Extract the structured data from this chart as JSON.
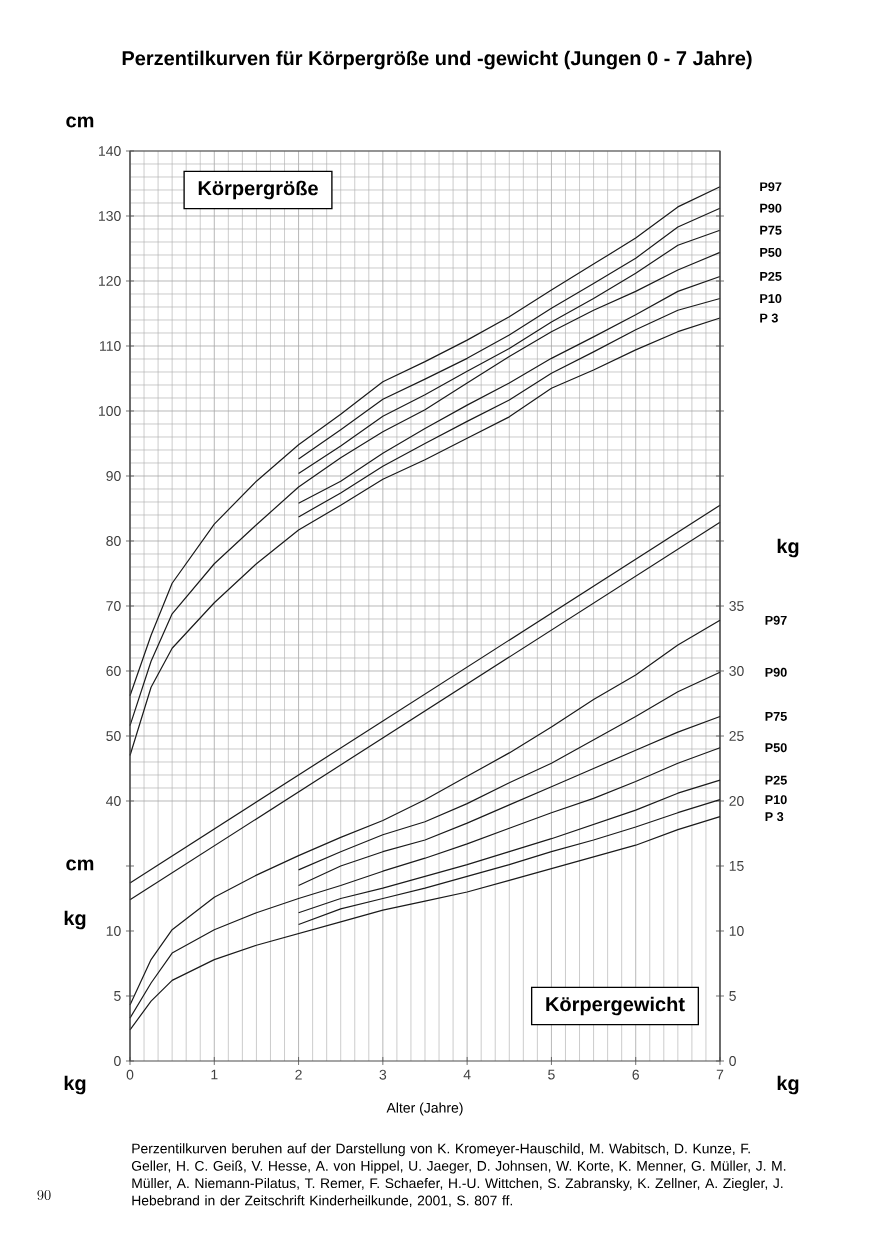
{
  "chart_data": {
    "type": "line",
    "title": "Perzentilkurven für Körpergröße und -gewicht (Jungen 0 - 7 Jahre)",
    "xlabel": "Alter (Jahre)",
    "ylabel": "cm",
    "y2label": "kg",
    "xlim": [
      0,
      7
    ],
    "xticks": [
      0,
      1,
      2,
      3,
      4,
      5,
      6,
      7
    ],
    "ylim": [
      0,
      140
    ],
    "yticks": [
      40,
      50,
      60,
      70,
      80,
      90,
      100,
      110,
      120,
      130,
      140
    ],
    "y3lim": [
      0,
      70
    ],
    "y3ticks": [
      0,
      5,
      10,
      {
        "value": 15,
        "label": null
      }
    ],
    "y2lim": [
      0,
      70
    ],
    "y2ticks": [
      0,
      5,
      10,
      15,
      20,
      25,
      30,
      35,
      {
        "value": 40,
        "label": null
      },
      {
        "value": 45,
        "label": null
      },
      {
        "value": 50,
        "label": null
      },
      {
        "value": 55,
        "label": null
      },
      {
        "value": 60,
        "label": null
      },
      {
        "value": 65,
        "label": null
      }
    ],
    "grid": true,
    "marker": "none",
    "series": [
      {
        "name": "P97",
        "color": "#1a1a1a",
        "x": [
          0,
          0.25,
          0.5,
          1,
          1.5,
          2,
          2.5,
          3,
          3.5,
          4,
          4.5,
          5,
          5.5,
          6,
          6.5,
          7
        ],
        "values": [
          56.2,
          65.5,
          73.5,
          82.6,
          89.2,
          94.8,
          99.5,
          104.5,
          107.6,
          110.9,
          114.5,
          118.6,
          122.6,
          126.6,
          131.4,
          134.5
        ]
      },
      {
        "name": "P90",
        "color": "#1a1a1a",
        "x": [
          2,
          2.5,
          3,
          3.5,
          4,
          4.5,
          5,
          5.5,
          6,
          6.5,
          7
        ],
        "values": [
          92.6,
          97.1,
          101.8,
          104.9,
          108.1,
          111.7,
          115.8,
          119.6,
          123.5,
          128.3,
          131.2
        ]
      },
      {
        "name": "P75",
        "color": "#1a1a1a",
        "x": [
          2,
          2.5,
          3,
          3.5,
          4,
          4.5,
          5,
          5.5,
          6,
          6.5,
          7
        ],
        "values": [
          90.4,
          94.6,
          99.2,
          102.5,
          106.1,
          109.6,
          113.7,
          117.3,
          121.2,
          125.5,
          127.8
        ]
      },
      {
        "name": "P50",
        "color": "#1a1a1a",
        "x": [
          0,
          0.25,
          0.5,
          1,
          1.5,
          2,
          2.5,
          3,
          3.5,
          4,
          4.5,
          5,
          5.5,
          6,
          6.5,
          7
        ],
        "values": [
          51.6,
          61.5,
          68.8,
          76.5,
          82.5,
          88.3,
          92.8,
          96.8,
          100.2,
          104.3,
          108.4,
          112.2,
          115.5,
          118.4,
          121.7,
          124.4
        ]
      },
      {
        "name": "P25",
        "color": "#1a1a1a",
        "x": [
          2,
          2.5,
          3,
          3.5,
          4,
          4.5,
          5,
          5.5,
          6,
          6.5,
          7
        ],
        "values": [
          85.8,
          89.2,
          93.5,
          97.3,
          100.9,
          104.3,
          108.1,
          111.4,
          114.8,
          118.4,
          120.7
        ]
      },
      {
        "name": "P10",
        "color": "#1a1a1a",
        "x": [
          2,
          2.5,
          3,
          3.5,
          4,
          4.5,
          5,
          5.5,
          6,
          6.5,
          7
        ],
        "values": [
          83.7,
          87.4,
          91.5,
          95.0,
          98.4,
          101.7,
          105.8,
          109.1,
          112.5,
          115.5,
          117.3
        ]
      },
      {
        "name": "P 3",
        "color": "#1a1a1a",
        "x": [
          0,
          0.25,
          0.5,
          1,
          1.5,
          2,
          2.5,
          3,
          3.5,
          4,
          4.5,
          5,
          5.5,
          6,
          6.5,
          7
        ],
        "values": [
          47.0,
          57.5,
          63.5,
          70.5,
          76.5,
          81.7,
          85.5,
          89.5,
          92.5,
          95.8,
          99.1,
          103.5,
          106.3,
          109.4,
          112.2,
          114.3
        ]
      },
      {
        "color": "#1a1a1a",
        "x": [
          0,
          7
        ],
        "values": [
          27.4,
          85.5
        ]
      },
      {
        "color": "#1a1a1a",
        "x": [
          0,
          7
        ],
        "values": [
          24.8,
          82.9
        ]
      },
      {
        "name": "P97",
        "color": "#1a1a1a",
        "axis": "y2",
        "x": [
          0,
          0.25,
          0.5,
          1,
          1.5,
          2,
          2.5,
          3,
          3.5,
          4,
          4.5,
          5,
          5.5,
          6,
          6.5,
          7
        ],
        "values": [
          4.3,
          7.8,
          10.1,
          12.6,
          14.3,
          15.8,
          17.2,
          18.5,
          20.1,
          21.9,
          23.7,
          25.7,
          27.8,
          29.7,
          32.0,
          33.9
        ]
      },
      {
        "name": "P90",
        "color": "#1a1a1a",
        "axis": "y2",
        "x": [
          2,
          2.5,
          3,
          3.5,
          4,
          4.5,
          5,
          5.5,
          6,
          6.5,
          7
        ],
        "values": [
          14.7,
          16.1,
          17.4,
          18.4,
          19.8,
          21.4,
          22.9,
          24.7,
          26.5,
          28.4,
          29.9
        ]
      },
      {
        "name": "P75",
        "color": "#1a1a1a",
        "axis": "y2",
        "x": [
          2,
          2.5,
          3,
          3.5,
          4,
          4.5,
          5,
          5.5,
          6,
          6.5,
          7
        ],
        "values": [
          13.5,
          15.0,
          16.1,
          17.0,
          18.3,
          19.7,
          21.1,
          22.5,
          23.9,
          25.3,
          26.5
        ]
      },
      {
        "name": "P50",
        "color": "#1a1a1a",
        "axis": "y2",
        "x": [
          0,
          0.25,
          0.5,
          1,
          1.5,
          2,
          2.5,
          3,
          3.5,
          4,
          4.5,
          5,
          5.5,
          6,
          6.5,
          7
        ],
        "values": [
          3.3,
          6.0,
          8.3,
          10.1,
          11.4,
          12.5,
          13.5,
          14.6,
          15.6,
          16.7,
          17.9,
          19.1,
          20.2,
          21.5,
          22.9,
          24.1
        ]
      },
      {
        "name": "P25",
        "color": "#1a1a1a",
        "axis": "y2",
        "x": [
          2,
          2.5,
          3,
          3.5,
          4,
          4.5,
          5,
          5.5,
          6,
          6.5,
          7
        ],
        "values": [
          11.4,
          12.5,
          13.3,
          14.2,
          15.1,
          16.1,
          17.1,
          18.2,
          19.3,
          20.6,
          21.6
        ]
      },
      {
        "name": "P10",
        "color": "#1a1a1a",
        "axis": "y2",
        "x": [
          2,
          2.5,
          3,
          3.5,
          4,
          4.5,
          5,
          5.5,
          6,
          6.5,
          7
        ],
        "values": [
          10.5,
          11.7,
          12.5,
          13.3,
          14.2,
          15.1,
          16.1,
          17.0,
          18.0,
          19.1,
          20.1
        ]
      },
      {
        "name": "P 3",
        "color": "#1a1a1a",
        "axis": "y2",
        "x": [
          0,
          0.25,
          0.5,
          1,
          1.5,
          2,
          2.5,
          3,
          3.5,
          4,
          4.5,
          5,
          5.5,
          6,
          6.5,
          7
        ],
        "values": [
          2.4,
          4.6,
          6.2,
          7.8,
          8.9,
          9.8,
          10.7,
          11.6,
          12.3,
          13.0,
          13.9,
          14.8,
          15.7,
          16.6,
          17.8,
          18.8
        ]
      }
    ],
    "annotations": [
      "Körpergröße",
      "Körpergewicht",
      "cm",
      "kg",
      "kg",
      "kg",
      "Perzentilkurven beruhen auf der Darstellung von K. Kromeyer-Hauschild, M. Wabitsch, D. Kunze, F. Geller, H. C. Geiß, V. Hesse, A. von Hippel, U. Jaeger, D. Johnsen, W. Korte, K. Menner, G. Müller, J. M. Müller, A. Niemann-Pilatus, T. Remer, F. Schaefer, H.-U. Wittchen, S. Zabransky, K. Zellner, A. Ziegler, J. Hebebrand in der Zeitschrift Kinderheilkunde, 2001, S. 807 ff.",
      "90"
    ]
  }
}
